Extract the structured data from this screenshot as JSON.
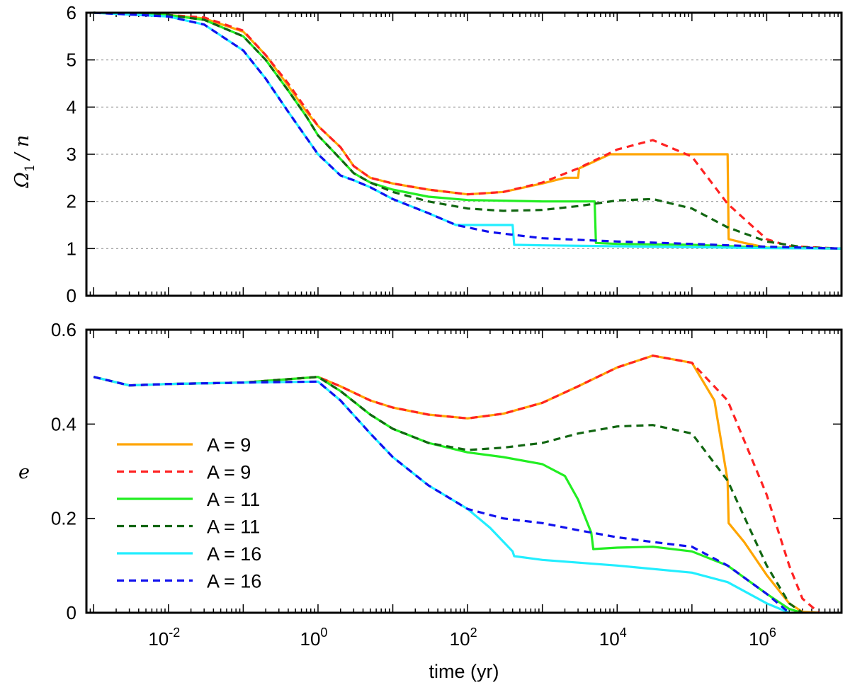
{
  "chart_data": [
    {
      "type": "line",
      "panel": "top",
      "ylabel_symbol": "Ω",
      "ylabel_subscript": "1",
      "ylabel_rest": "/ n",
      "xscale": "log",
      "xlim": [
        0.0008,
        10000000
      ],
      "ylim": [
        0,
        6
      ],
      "yticks": [
        "0",
        "1",
        "2",
        "3",
        "4",
        "5",
        "6"
      ],
      "grid": "horizontal dotted",
      "series": [
        {
          "name": "A = 9",
          "style": "solid",
          "color": "#ffa500",
          "x": [
            0.001,
            0.01,
            0.03,
            0.1,
            0.2,
            0.4,
            0.7,
            1,
            2,
            3,
            5,
            10,
            30,
            100,
            300,
            1000,
            2000,
            3000,
            3100,
            5000,
            8000,
            10000,
            50000,
            100000,
            200000,
            300000,
            310000,
            500000,
            1000000,
            10000000
          ],
          "y": [
            6,
            5.95,
            5.88,
            5.6,
            5.1,
            4.45,
            3.9,
            3.6,
            3.15,
            2.75,
            2.5,
            2.38,
            2.25,
            2.15,
            2.2,
            2.38,
            2.5,
            2.5,
            2.7,
            2.85,
            3,
            3,
            3,
            3,
            3,
            3,
            1.2,
            1.12,
            1.02,
            1
          ]
        },
        {
          "name": "A = 9",
          "style": "dashed",
          "color": "#ff2222",
          "x": [
            0.001,
            0.01,
            0.03,
            0.1,
            0.2,
            0.4,
            0.7,
            1,
            2,
            3,
            5,
            10,
            30,
            100,
            300,
            1000,
            3000,
            10000,
            30000,
            100000,
            300000,
            1000000,
            2000000,
            10000000
          ],
          "y": [
            6,
            5.95,
            5.9,
            5.62,
            5.1,
            4.5,
            3.95,
            3.6,
            3.15,
            2.75,
            2.5,
            2.38,
            2.25,
            2.15,
            2.2,
            2.4,
            2.7,
            3.1,
            3.3,
            2.95,
            1.95,
            1.2,
            1.05,
            1
          ]
        },
        {
          "name": "A = 11",
          "style": "solid",
          "color": "#22ee22",
          "x": [
            0.001,
            0.01,
            0.03,
            0.1,
            0.2,
            0.4,
            0.7,
            1,
            2,
            3,
            5,
            10,
            30,
            100,
            1000,
            5000,
            5200,
            10000,
            100000,
            1000000,
            10000000
          ],
          "y": [
            6,
            5.95,
            5.85,
            5.5,
            5.0,
            4.35,
            3.8,
            3.4,
            2.9,
            2.6,
            2.4,
            2.25,
            2.1,
            2.03,
            2.0,
            2.0,
            1.12,
            1.1,
            1.08,
            1.02,
            1
          ]
        },
        {
          "name": "A = 11",
          "style": "dashed",
          "color": "#116611",
          "x": [
            0.001,
            0.01,
            0.03,
            0.1,
            0.2,
            0.4,
            0.7,
            1,
            2,
            3,
            5,
            10,
            30,
            100,
            300,
            1000,
            3000,
            10000,
            30000,
            100000,
            300000,
            1000000,
            3000000,
            10000000
          ],
          "y": [
            6,
            5.95,
            5.85,
            5.5,
            5.0,
            4.35,
            3.8,
            3.4,
            2.9,
            2.6,
            2.4,
            2.2,
            2.0,
            1.85,
            1.8,
            1.82,
            1.9,
            2.02,
            2.05,
            1.85,
            1.45,
            1.15,
            1.03,
            1
          ]
        },
        {
          "name": "A = 16",
          "style": "solid",
          "color": "#22eeff",
          "x": [
            0.001,
            0.01,
            0.03,
            0.1,
            0.2,
            0.4,
            0.7,
            1,
            2,
            3,
            5,
            10,
            30,
            70,
            200,
            400,
            420,
            1000,
            10000,
            100000,
            1000000,
            10000000
          ],
          "y": [
            6,
            5.92,
            5.75,
            5.2,
            4.6,
            3.9,
            3.35,
            3.0,
            2.55,
            2.45,
            2.3,
            2.05,
            1.75,
            1.5,
            1.5,
            1.5,
            1.08,
            1.07,
            1.05,
            1.03,
            1.01,
            1
          ]
        },
        {
          "name": "A = 16",
          "style": "dashed",
          "color": "#1111ee",
          "x": [
            0.001,
            0.01,
            0.03,
            0.1,
            0.2,
            0.4,
            0.7,
            1,
            2,
            3,
            5,
            10,
            30,
            70,
            200,
            1000,
            10000,
            100000,
            1000000,
            10000000
          ],
          "y": [
            6,
            5.92,
            5.75,
            5.2,
            4.6,
            3.9,
            3.35,
            3.0,
            2.55,
            2.45,
            2.3,
            2.05,
            1.75,
            1.5,
            1.35,
            1.22,
            1.15,
            1.1,
            1.04,
            1
          ]
        }
      ]
    },
    {
      "type": "line",
      "panel": "bottom",
      "ylabel": "e",
      "xlabel": "time (yr)",
      "xscale": "log",
      "xlim": [
        0.0008,
        10000000
      ],
      "ylim": [
        0,
        0.6
      ],
      "yticks": [
        "0",
        "0.2",
        "0.4",
        "0.6"
      ],
      "xticks": [
        {
          "value": 0.01,
          "base": "10",
          "exp": "-2"
        },
        {
          "value": 1,
          "base": "10",
          "exp": "0"
        },
        {
          "value": 100,
          "base": "10",
          "exp": "2"
        },
        {
          "value": 10000,
          "base": "10",
          "exp": "4"
        },
        {
          "value": 1000000,
          "base": "10",
          "exp": "6"
        }
      ],
      "legend_position": "left",
      "series": [
        {
          "name": "A = 9",
          "style": "solid",
          "color": "#ffa500",
          "x": [
            0.001,
            0.003,
            0.01,
            0.1,
            1,
            2,
            5,
            10,
            30,
            100,
            300,
            1000,
            3000,
            10000,
            30000,
            100000,
            200000,
            300000,
            310000,
            500000,
            1000000,
            2000000,
            3000000,
            5000000
          ],
          "y": [
            0.5,
            0.482,
            0.485,
            0.488,
            0.5,
            0.48,
            0.45,
            0.435,
            0.42,
            0.412,
            0.422,
            0.445,
            0.48,
            0.52,
            0.545,
            0.53,
            0.45,
            0.28,
            0.19,
            0.15,
            0.08,
            0.02,
            0.002,
            0
          ]
        },
        {
          "name": "A = 9",
          "style": "dashed",
          "color": "#ff2222",
          "x": [
            0.001,
            0.003,
            0.01,
            0.1,
            1,
            2,
            5,
            10,
            30,
            100,
            300,
            1000,
            3000,
            10000,
            30000,
            100000,
            300000,
            1000000,
            2000000,
            3000000,
            5000000
          ],
          "y": [
            0.5,
            0.482,
            0.485,
            0.488,
            0.5,
            0.48,
            0.45,
            0.435,
            0.42,
            0.412,
            0.422,
            0.445,
            0.48,
            0.52,
            0.545,
            0.53,
            0.45,
            0.25,
            0.1,
            0.03,
            0
          ]
        },
        {
          "name": "A = 11",
          "style": "solid",
          "color": "#22ee22",
          "x": [
            0.001,
            0.003,
            0.01,
            0.1,
            1,
            2,
            5,
            10,
            30,
            100,
            300,
            1000,
            2000,
            3000,
            4500,
            4800,
            10000,
            30000,
            100000,
            300000,
            1000000,
            2000000,
            3000000
          ],
          "y": [
            0.5,
            0.482,
            0.485,
            0.488,
            0.5,
            0.47,
            0.42,
            0.39,
            0.36,
            0.34,
            0.33,
            0.315,
            0.29,
            0.24,
            0.17,
            0.135,
            0.138,
            0.14,
            0.13,
            0.1,
            0.04,
            0.008,
            0
          ]
        },
        {
          "name": "A = 11",
          "style": "dashed",
          "color": "#116611",
          "x": [
            0.001,
            0.003,
            0.01,
            0.1,
            1,
            2,
            5,
            10,
            30,
            100,
            300,
            1000,
            3000,
            10000,
            30000,
            100000,
            300000,
            1000000,
            2000000,
            3000000
          ],
          "y": [
            0.5,
            0.482,
            0.485,
            0.488,
            0.5,
            0.47,
            0.42,
            0.39,
            0.36,
            0.345,
            0.35,
            0.36,
            0.38,
            0.395,
            0.398,
            0.38,
            0.28,
            0.1,
            0.02,
            0
          ]
        },
        {
          "name": "A = 16",
          "style": "solid",
          "color": "#22eeff",
          "x": [
            0.001,
            0.003,
            0.01,
            0.1,
            1,
            2,
            5,
            10,
            30,
            100,
            200,
            400,
            420,
            1000,
            10000,
            100000,
            300000,
            1000000,
            2000000
          ],
          "y": [
            0.5,
            0.482,
            0.485,
            0.488,
            0.49,
            0.45,
            0.38,
            0.33,
            0.27,
            0.22,
            0.18,
            0.13,
            0.12,
            0.112,
            0.1,
            0.085,
            0.065,
            0.02,
            0
          ]
        },
        {
          "name": "A = 16",
          "style": "dashed",
          "color": "#1111ee",
          "x": [
            0.001,
            0.003,
            0.01,
            0.1,
            1,
            2,
            5,
            10,
            30,
            100,
            300,
            1000,
            3000,
            10000,
            30000,
            100000,
            300000,
            1000000,
            2000000
          ],
          "y": [
            0.5,
            0.482,
            0.485,
            0.488,
            0.49,
            0.45,
            0.38,
            0.33,
            0.27,
            0.22,
            0.2,
            0.19,
            0.175,
            0.16,
            0.15,
            0.14,
            0.1,
            0.04,
            0
          ]
        }
      ]
    }
  ]
}
